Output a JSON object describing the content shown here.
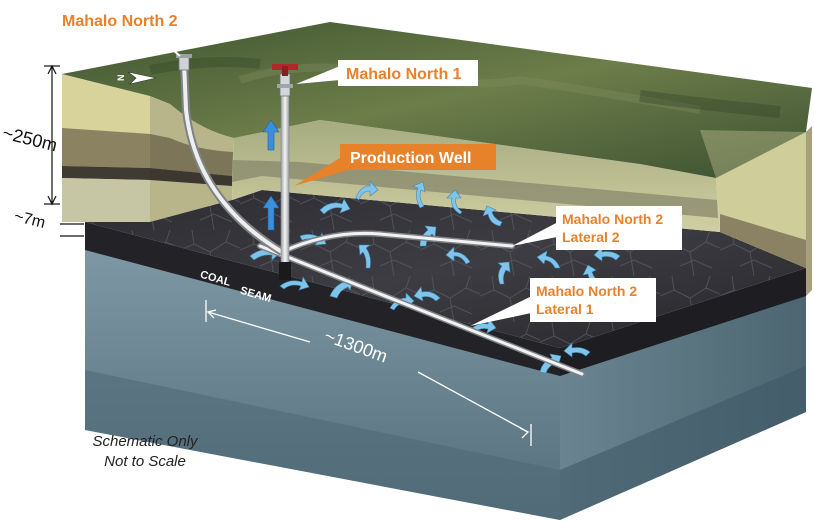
{
  "labels": {
    "well_north_2": "Mahalo North 2",
    "well_north_1": "Mahalo North 1",
    "production_well": "Production Well",
    "lateral_2_line1": "Mahalo North 2",
    "lateral_2_line2": "Lateral 2",
    "lateral_1_line1": "Mahalo North 2",
    "lateral_1_line2": "Lateral 1",
    "coal_seam_word1": "COAL",
    "coal_seam_word2": "SEAM",
    "depth_top": "~250m",
    "depth_seam": "~7m",
    "length": "~1300m",
    "north_marker": "N"
  },
  "note": {
    "line1": "Schematic Only",
    "line2": "Not to Scale"
  },
  "colors": {
    "callout_accent": "#e8822a",
    "callout_bg": "#ffffff",
    "surface_green": "#4f6a3a",
    "sand_layer": "#d9d39a",
    "clay_layer": "#8a8060",
    "coal_seam": "#2a2a2e",
    "basement": "#6d8a98",
    "gas_arrow": "#7fc4ea",
    "flow_arrow": "#3a8fdc"
  }
}
